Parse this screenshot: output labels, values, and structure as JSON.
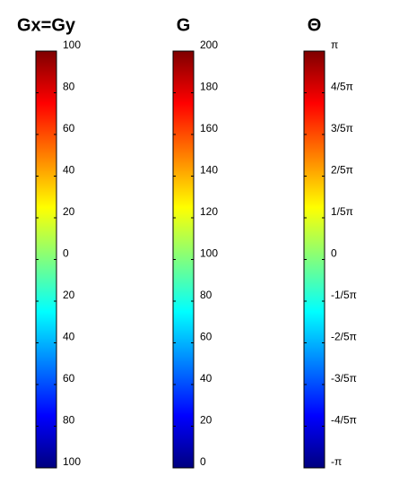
{
  "chart_data": [
    {
      "type": "colorbar",
      "title": "Gx=Gy",
      "colormap": "jet",
      "ylim": [
        -100,
        100
      ],
      "yticks": [
        100,
        80,
        60,
        40,
        20,
        0,
        {
          "value": -20,
          "label": "20"
        },
        {
          "value": -40,
          "label": "40"
        },
        {
          "value": -60,
          "label": "60"
        },
        {
          "value": -80,
          "label": "80"
        },
        {
          "value": -100,
          "label": "100"
        }
      ]
    },
    {
      "type": "colorbar",
      "title": "G",
      "colormap": "jet",
      "ylim": [
        0,
        200
      ],
      "yticks": [
        200,
        180,
        160,
        140,
        120,
        100,
        80,
        60,
        40,
        20,
        0
      ]
    },
    {
      "type": "colorbar",
      "title": "Θ",
      "colormap": "jet",
      "ylim": [
        -3.14159,
        3.14159
      ],
      "yticks": [
        {
          "value": 3.14159,
          "label": "π"
        },
        {
          "value": 2.51327,
          "label": "4/5π"
        },
        {
          "value": 1.88496,
          "label": "3/5π"
        },
        {
          "value": 1.25664,
          "label": "2/5π"
        },
        {
          "value": 0.62832,
          "label": "1/5π"
        },
        0,
        {
          "value": -0.62832,
          "label": "-1/5π"
        },
        {
          "value": -1.25664,
          "label": "-2/5π"
        },
        {
          "value": -1.88496,
          "label": "-3/5π"
        },
        {
          "value": -2.51327,
          "label": "-4/5π"
        },
        {
          "value": -3.14159,
          "label": "-π"
        }
      ]
    }
  ]
}
